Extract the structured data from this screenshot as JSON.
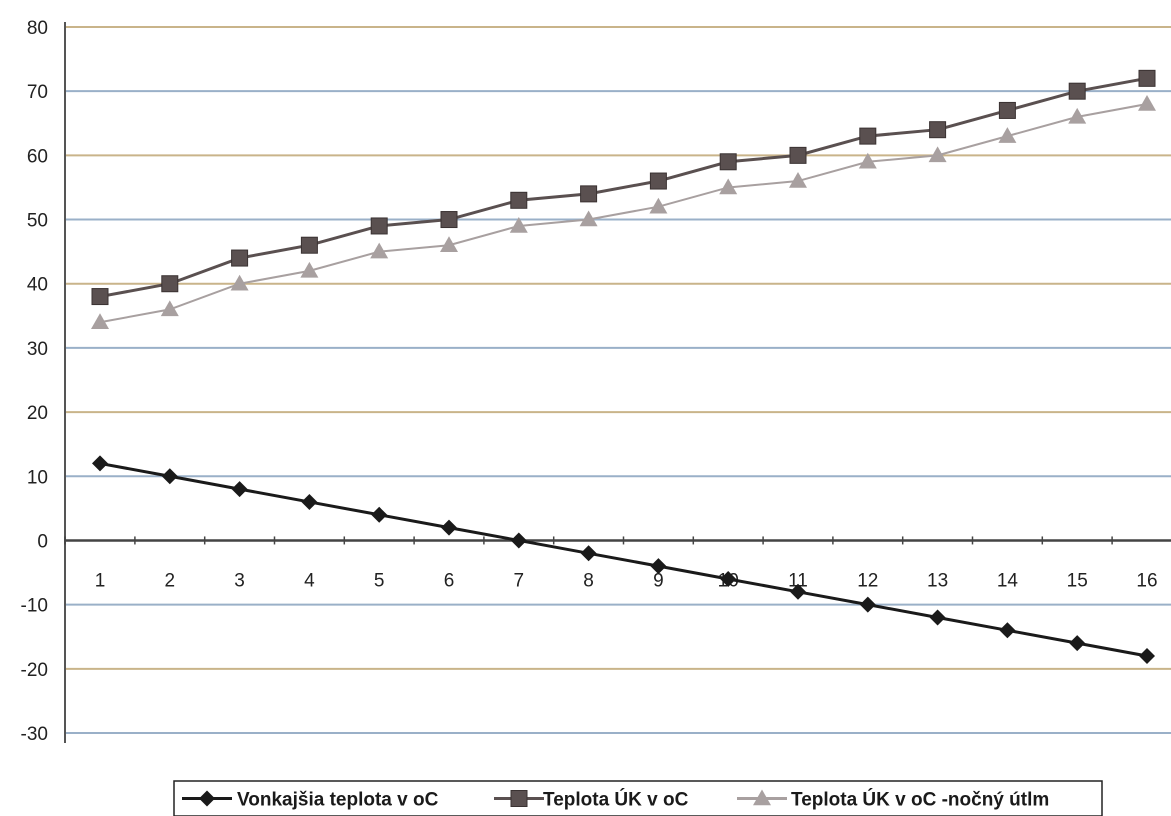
{
  "chart_data": {
    "type": "line",
    "title": "",
    "xlabel": "",
    "ylabel": "",
    "categories": [
      "1",
      "2",
      "3",
      "4",
      "5",
      "6",
      "7",
      "8",
      "9",
      "10",
      "11",
      "12",
      "13",
      "14",
      "15",
      "16"
    ],
    "ylim": [
      -30,
      80
    ],
    "yticks": [
      -30,
      -20,
      -10,
      0,
      10,
      20,
      30,
      40,
      50,
      60,
      70,
      80
    ],
    "grid": true,
    "legend_position": "bottom",
    "series": [
      {
        "name": "Vonkajšia teplota v oC",
        "marker": "diamond",
        "color": "#1a1a1a",
        "values": [
          12,
          10,
          8,
          6,
          4,
          2,
          0,
          -2,
          -4,
          -6,
          -8,
          -10,
          -12,
          -14,
          -16,
          -18
        ]
      },
      {
        "name": "Teplota ÚK v oC",
        "marker": "square",
        "color": "#5a5050",
        "values": [
          38,
          40,
          44,
          46,
          49,
          50,
          53,
          54,
          56,
          59,
          60,
          63,
          64,
          67,
          70,
          72
        ]
      },
      {
        "name": "Teplota ÚK v oC -nočný útlm",
        "marker": "triangle",
        "color": "#a8a0a0",
        "values": [
          34,
          36,
          40,
          42,
          45,
          46,
          49,
          50,
          52,
          55,
          56,
          59,
          60,
          63,
          66,
          68
        ]
      }
    ],
    "gridline_colors": [
      "#9ab0c8",
      "#c9b48a"
    ]
  }
}
